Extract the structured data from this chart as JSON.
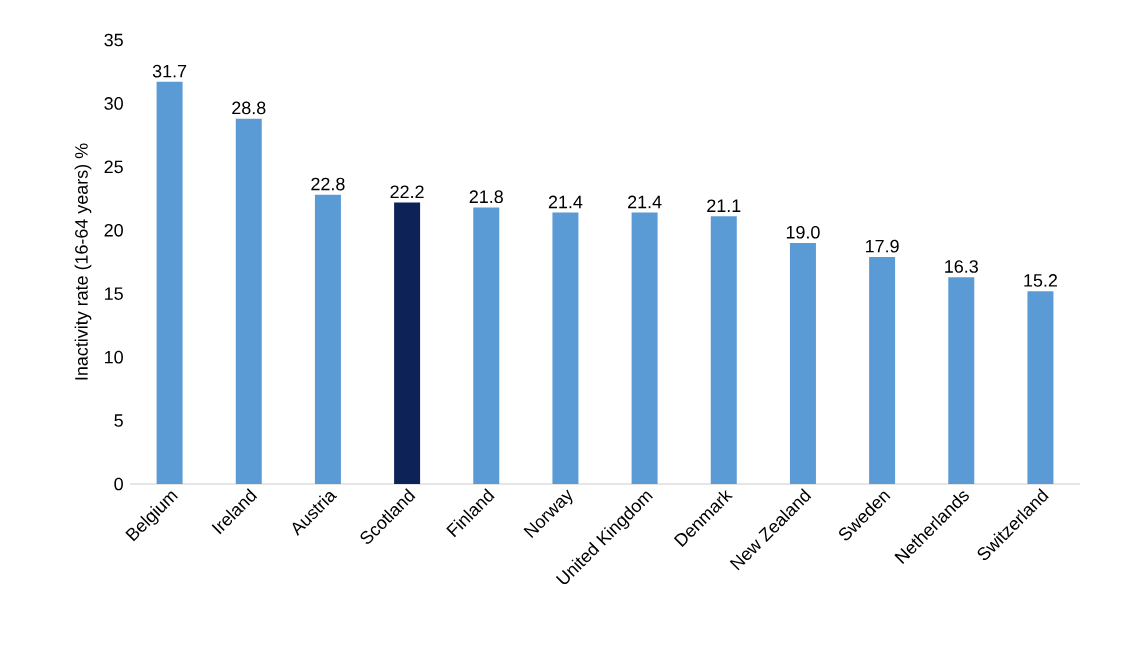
{
  "chart_data": {
    "type": "bar",
    "ylabel": "Inactivity rate (16-64 years) %",
    "categories": [
      "Belgium",
      "Ireland",
      "Austria",
      "Scotland",
      "Finland",
      "Norway",
      "United Kingdom",
      "Denmark",
      "New Zealand",
      "Sweden",
      "Netherlands",
      "Switzerland"
    ],
    "values": [
      31.7,
      28.8,
      22.8,
      22.2,
      21.8,
      21.4,
      21.4,
      21.1,
      19.0,
      17.9,
      16.3,
      15.2
    ],
    "colors": [
      "#5b9bd5",
      "#5b9bd5",
      "#5b9bd5",
      "#0d2357",
      "#5b9bd5",
      "#5b9bd5",
      "#5b9bd5",
      "#5b9bd5",
      "#5b9bd5",
      "#5b9bd5",
      "#5b9bd5",
      "#5b9bd5"
    ],
    "value_labels": [
      "31.7",
      "28.8",
      "22.8",
      "22.2",
      "21.8",
      "21.4",
      "21.4",
      "21.1",
      "19.0",
      "17.9",
      "16.3",
      "15.2"
    ],
    "ylim": [
      0,
      35
    ],
    "yticks": [
      0,
      5,
      10,
      15,
      20,
      25,
      30,
      35
    ]
  }
}
